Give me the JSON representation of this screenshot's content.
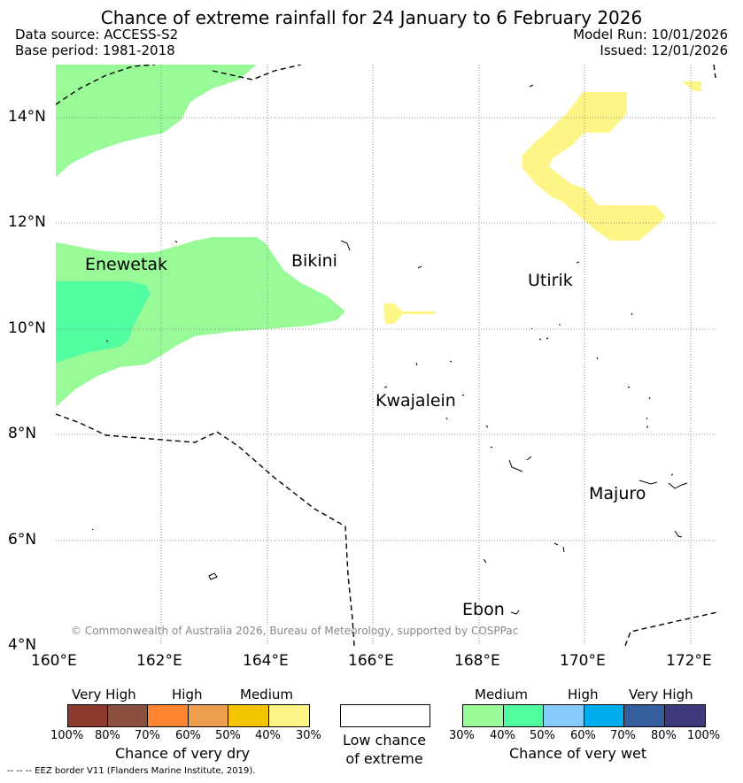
{
  "title": "Chance of extreme rainfall for 24 January to 6 February 2026",
  "data_source": "Data source: ACCESS-S2",
  "base_period": "Base period: 1981-2018",
  "model_run": "Model Run: 10/01/2026",
  "issued": "Issued: 12/01/2026",
  "copyright": "© Commonwealth of Australia 2026, Bureau of Meteorology, supported by COSPPac",
  "places": [
    "Enewetak",
    "Bikini",
    "Utirik",
    "Kwajalein",
    "Majuro",
    "Ebon"
  ],
  "lat_ticks": [
    "14°N",
    "12°N",
    "10°N",
    "8°N",
    "6°N",
    "4°N"
  ],
  "lon_ticks": [
    "160°E",
    "162°E",
    "164°E",
    "166°E",
    "168°E",
    "170°E",
    "172°E"
  ],
  "dry_bar": {
    "headers": [
      "Very High",
      "High",
      "Medium"
    ],
    "colors": [
      "#8c3a2e",
      "#8b4f3f",
      "#ff8533",
      "#ec9e4e",
      "#f2c500",
      "#fef587"
    ],
    "ticks": [
      "100%",
      "80%",
      "70%",
      "60%",
      "50%",
      "40%",
      "30%"
    ],
    "title": "Chance of very dry"
  },
  "low_box": {
    "line1": "Low chance",
    "line2": "of extreme"
  },
  "wet_bar": {
    "headers": [
      "Medium",
      "High",
      "Very High"
    ],
    "colors": [
      "#99fb98",
      "#52fda2",
      "#86cbf9",
      "#00aeed",
      "#355e9c",
      "#3f3a7b"
    ],
    "ticks": [
      "30%",
      "40%",
      "50%",
      "60%",
      "70%",
      "80%",
      "100%"
    ],
    "title": "Chance of very wet"
  },
  "footer": "--  --  -- EEZ border V11 (Flanders Marine Institute, 2019)."
}
